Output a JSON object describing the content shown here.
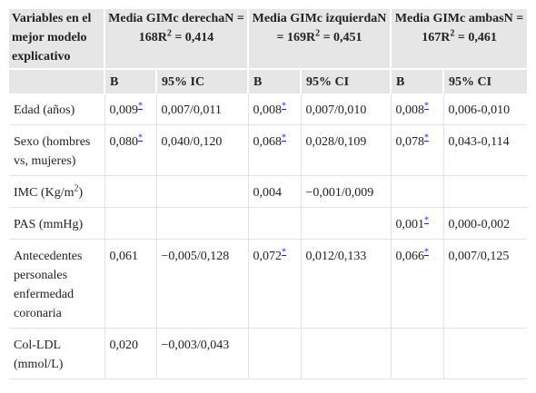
{
  "table": {
    "header": {
      "corner": "Variables en el mejor modelo explicativo",
      "groups": [
        {
          "parts": [
            "Media GIMc derechaN = 168R",
            "2",
            " = 0,414"
          ]
        },
        {
          "parts": [
            "Media GIMc izquierdaN = 169R",
            "2",
            " = 0,451"
          ]
        },
        {
          "parts": [
            "Media GIMc ambasN = 167R",
            "2",
            " = 0,461"
          ]
        }
      ],
      "subheads": [
        "B",
        "95% IC",
        "B",
        "95% CI",
        "B",
        "95% CI"
      ]
    },
    "rows": [
      {
        "label": "Edad (años)",
        "cells": [
          {
            "value": "0,009",
            "note": "*"
          },
          "0,007/0,011",
          {
            "value": "0,008",
            "note": "*"
          },
          "0,007/0,010",
          {
            "value": "0,008",
            "note": "*"
          },
          "0,006-0,010"
        ]
      },
      {
        "label": "Sexo (hombres vs, mujeres)",
        "cells": [
          {
            "value": "0,080",
            "note": "*"
          },
          "0,040/0,120",
          {
            "value": "0,068",
            "note": "*"
          },
          "0,028/0,109",
          {
            "value": "0,078",
            "note": "*"
          },
          "0,043-0,114"
        ]
      },
      {
        "label": {
          "parts": [
            "IMC (Kg/m",
            "2",
            ")"
          ]
        },
        "cells": [
          null,
          null,
          "0,004",
          "−0,001/0,009",
          null,
          null
        ]
      },
      {
        "label": "PAS (mmHg)",
        "cells": [
          null,
          null,
          null,
          null,
          {
            "value": "0,001",
            "note": "*"
          },
          "0,000-0,002"
        ]
      },
      {
        "label": "Antecedentes personales enfermedad coronaria",
        "cells": [
          "0,061",
          "−0,005/0,128",
          {
            "value": "0,072",
            "note": "*"
          },
          "0,012/0,133",
          {
            "value": "0,066",
            "note": "*"
          },
          "0,007/0,125"
        ]
      },
      {
        "label": "Col-LDL (mmol/L)",
        "cells": [
          "0,020",
          "−0,003/0,043",
          null,
          null,
          null,
          null
        ]
      }
    ]
  }
}
